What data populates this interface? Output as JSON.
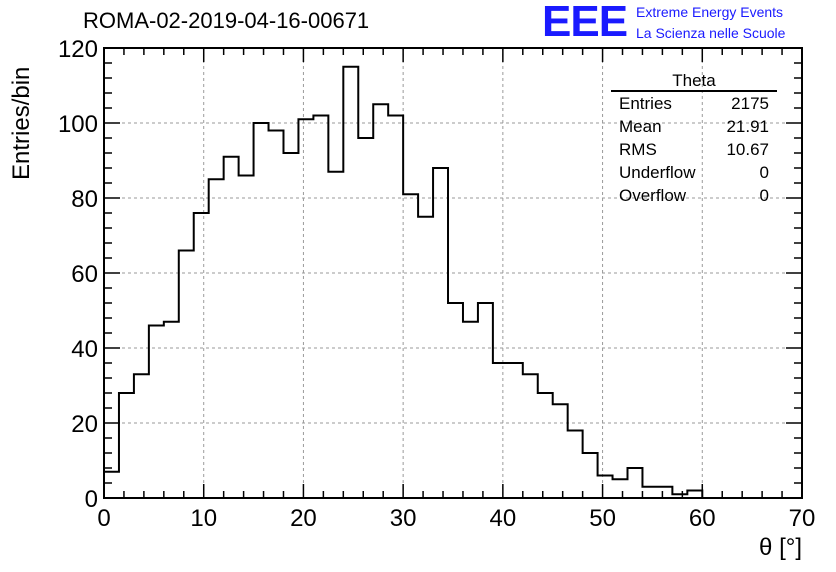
{
  "header": {
    "run_title": "ROMA-02-2019-04-16-00671",
    "logo_text": "EEE",
    "logo_line1": "Extreme Energy Events",
    "logo_line2": "La Scienza nelle Scuole",
    "logo_color": "#1a1aff"
  },
  "stats_box": {
    "title": "Theta",
    "rows": [
      {
        "label": "Entries",
        "value": "2175"
      },
      {
        "label": "Mean",
        "value": "21.91"
      },
      {
        "label": "RMS",
        "value": "10.67"
      },
      {
        "label": "Underflow",
        "value": "0"
      },
      {
        "label": "Overflow",
        "value": "0"
      }
    ]
  },
  "chart_data": {
    "type": "bar",
    "style": "step-histogram",
    "xlabel": "θ [°]",
    "ylabel": "Entries/bin",
    "xlim": [
      0,
      70
    ],
    "ylim": [
      0,
      120
    ],
    "x_ticks": [
      0,
      10,
      20,
      30,
      40,
      50,
      60,
      70
    ],
    "y_ticks": [
      0,
      20,
      40,
      60,
      80,
      100,
      120
    ],
    "grid": true,
    "bin_width": 1.5,
    "bin_start": 0,
    "values": [
      7,
      28,
      33,
      46,
      47,
      66,
      76,
      85,
      91,
      86,
      100,
      98,
      92,
      101,
      102,
      87,
      115,
      96,
      105,
      102,
      81,
      75,
      88,
      52,
      47,
      52,
      36,
      36,
      33,
      28,
      25,
      18,
      12,
      6,
      5,
      8,
      3,
      3,
      1,
      2,
      0,
      0,
      0,
      0,
      0,
      0,
      0
    ],
    "line_color": "#000000",
    "grid_color": "#9a9a9a"
  }
}
